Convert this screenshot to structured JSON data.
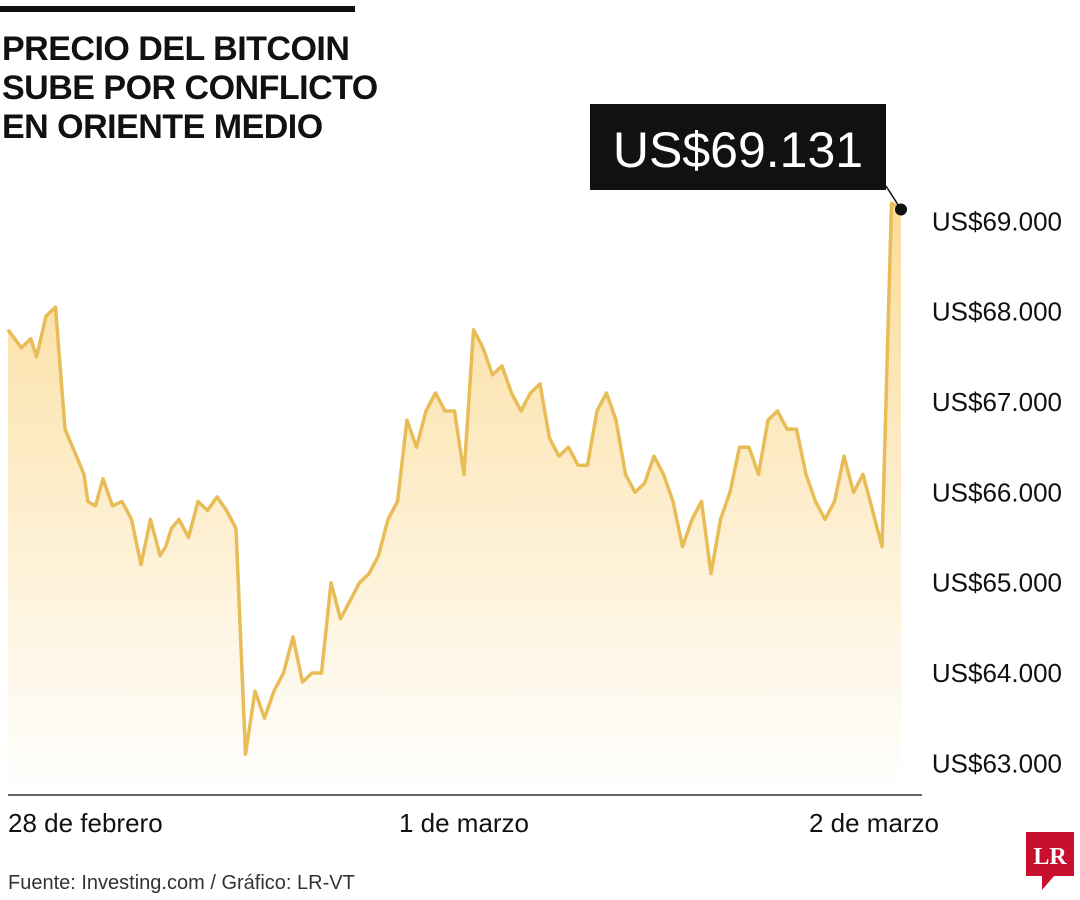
{
  "title_lines": [
    "PRECIO DEL BITCOIN",
    "SUBE POR CONFLICTO",
    "EN ORIENTE MEDIO"
  ],
  "source": "Fuente: Investing.com / Gráfico: LR-VT",
  "logo_text": "LR",
  "colors": {
    "line": "#e8bd58",
    "area_top": "#fbdc99",
    "area_bottom": "#ffffff",
    "text": "#111111",
    "callout_bg": "#111111",
    "callout_text": "#ffffff",
    "logo_red": "#c8102e"
  },
  "chart_data": {
    "type": "area",
    "title": "PRECIO DEL BITCOIN SUBE POR CONFLICTO EN ORIENTE MEDIO",
    "xlabel": "",
    "ylabel": "",
    "ylim": [
      62650,
      69900
    ],
    "xlim": [
      0,
      48
    ],
    "grid": false,
    "y_ticks": [
      63000,
      64000,
      65000,
      66000,
      67000,
      68000,
      69000
    ],
    "y_tick_labels": [
      "US$63.000",
      "US$64.000",
      "US$65.000",
      "US$66.000",
      "US$67.000",
      "US$68.000",
      "US$69.000"
    ],
    "x_ticks": [
      0,
      24,
      44
    ],
    "x_tick_labels": [
      "28 de febrero",
      "1 de marzo",
      "2 de marzo"
    ],
    "callout": {
      "label": "US$69.131",
      "value": 69131
    },
    "series": [
      {
        "x": [
          0,
          0.7,
          1.2,
          1.5,
          2,
          2.5,
          3,
          3.4,
          4,
          4.2,
          4.6,
          5,
          5.5,
          6,
          6.5,
          7,
          7.5,
          8,
          8.3,
          8.6,
          9,
          9.5,
          10,
          10.5,
          11,
          11.5,
          12,
          12.5,
          13,
          13.5,
          14,
          14.5,
          15,
          15.5,
          16,
          16.5,
          17,
          17.5,
          18,
          18.5,
          19,
          19.5,
          20,
          20.5,
          21,
          21.5,
          22,
          22.5,
          23,
          23.5,
          24,
          24.5,
          25,
          25.5,
          26,
          26.5,
          27,
          27.5,
          28,
          28.5,
          29,
          29.5,
          30,
          30.5,
          31,
          31.5,
          32,
          32.5,
          33,
          33.5,
          34,
          34.5,
          35,
          35.5,
          36,
          36.5,
          37,
          37.5,
          38,
          38.5,
          39,
          39.5,
          40,
          40.5,
          41,
          41.5,
          42,
          42.5,
          43,
          43.5,
          44,
          44.5,
          45,
          45.5,
          46,
          46.5,
          47
        ],
        "values": [
          67800,
          67600,
          67700,
          67500,
          67950,
          68050,
          66700,
          66500,
          66200,
          65900,
          65850,
          66150,
          65850,
          65900,
          65700,
          65200,
          65700,
          65300,
          65400,
          65600,
          65700,
          65500,
          65900,
          65800,
          65950,
          65800,
          65600,
          63100,
          63800,
          63500,
          63800,
          64000,
          64400,
          63900,
          64000,
          64000,
          65000,
          64600,
          64800,
          65000,
          65100,
          65300,
          65700,
          65900,
          66800,
          66500,
          66900,
          67100,
          66900,
          66900,
          66200,
          67800,
          67600,
          67300,
          67400,
          67100,
          66900,
          67100,
          67200,
          66600,
          66400,
          66500,
          66300,
          66300,
          66900,
          67100,
          66800,
          66200,
          66000,
          66100,
          66400,
          66200,
          65900,
          65400,
          65700,
          65900,
          65100,
          65700,
          66000,
          66500,
          66500,
          66200,
          66800,
          66900,
          66700,
          66700,
          66200,
          65900,
          65700,
          65900,
          66400,
          66000,
          66200,
          65800,
          65400,
          69200,
          69131
        ]
      }
    ]
  }
}
